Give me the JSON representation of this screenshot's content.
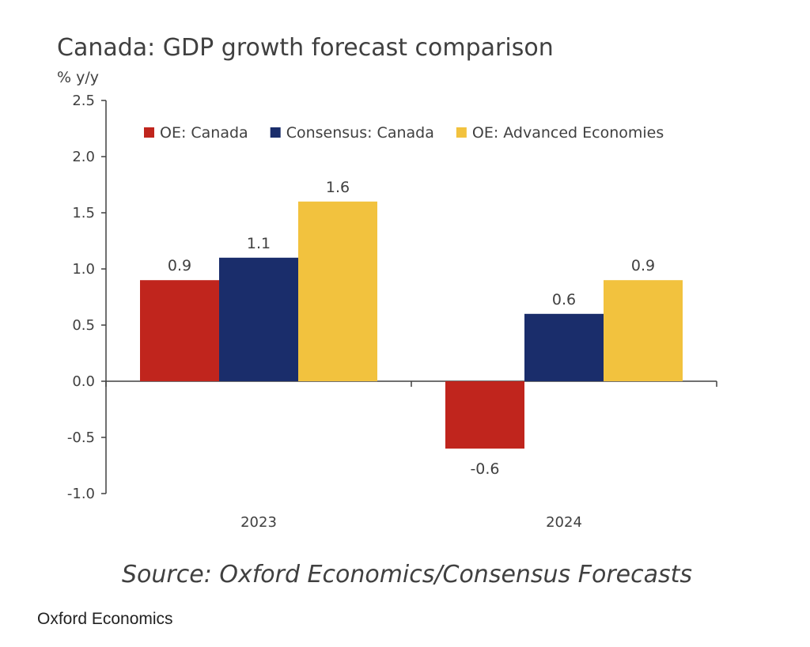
{
  "chart_data": {
    "type": "bar",
    "title": "Canada: GDP growth forecast comparison",
    "ylabel": "% y/y",
    "xlabel": "",
    "ylim": [
      -1.0,
      2.5
    ],
    "yticks": [
      2.5,
      2.0,
      1.5,
      1.0,
      0.5,
      0.0,
      -0.5,
      -1.0
    ],
    "ytick_labels": [
      "2.5",
      "2.0",
      "1.5",
      "1.0",
      "0.5",
      "0.0",
      "-0.5",
      "-1.0"
    ],
    "categories": [
      "2023",
      "2024"
    ],
    "series": [
      {
        "name": "OE: Canada",
        "color": "#c0251d",
        "values": [
          0.9,
          -0.6
        ],
        "labels": [
          "0.9",
          "-0.6"
        ]
      },
      {
        "name": "Consensus: Canada",
        "color": "#1a2d6b",
        "values": [
          1.1,
          0.6
        ],
        "labels": [
          "1.1",
          "0.6"
        ]
      },
      {
        "name": "OE: Advanced Economies",
        "color": "#f2c23e",
        "values": [
          1.6,
          0.9
        ],
        "labels": [
          "1.6",
          "0.9"
        ]
      }
    ],
    "legend_position": "top",
    "grid": false,
    "source": "Source: Oxford Economics/Consensus Forecasts"
  },
  "caption": "Oxford Economics"
}
